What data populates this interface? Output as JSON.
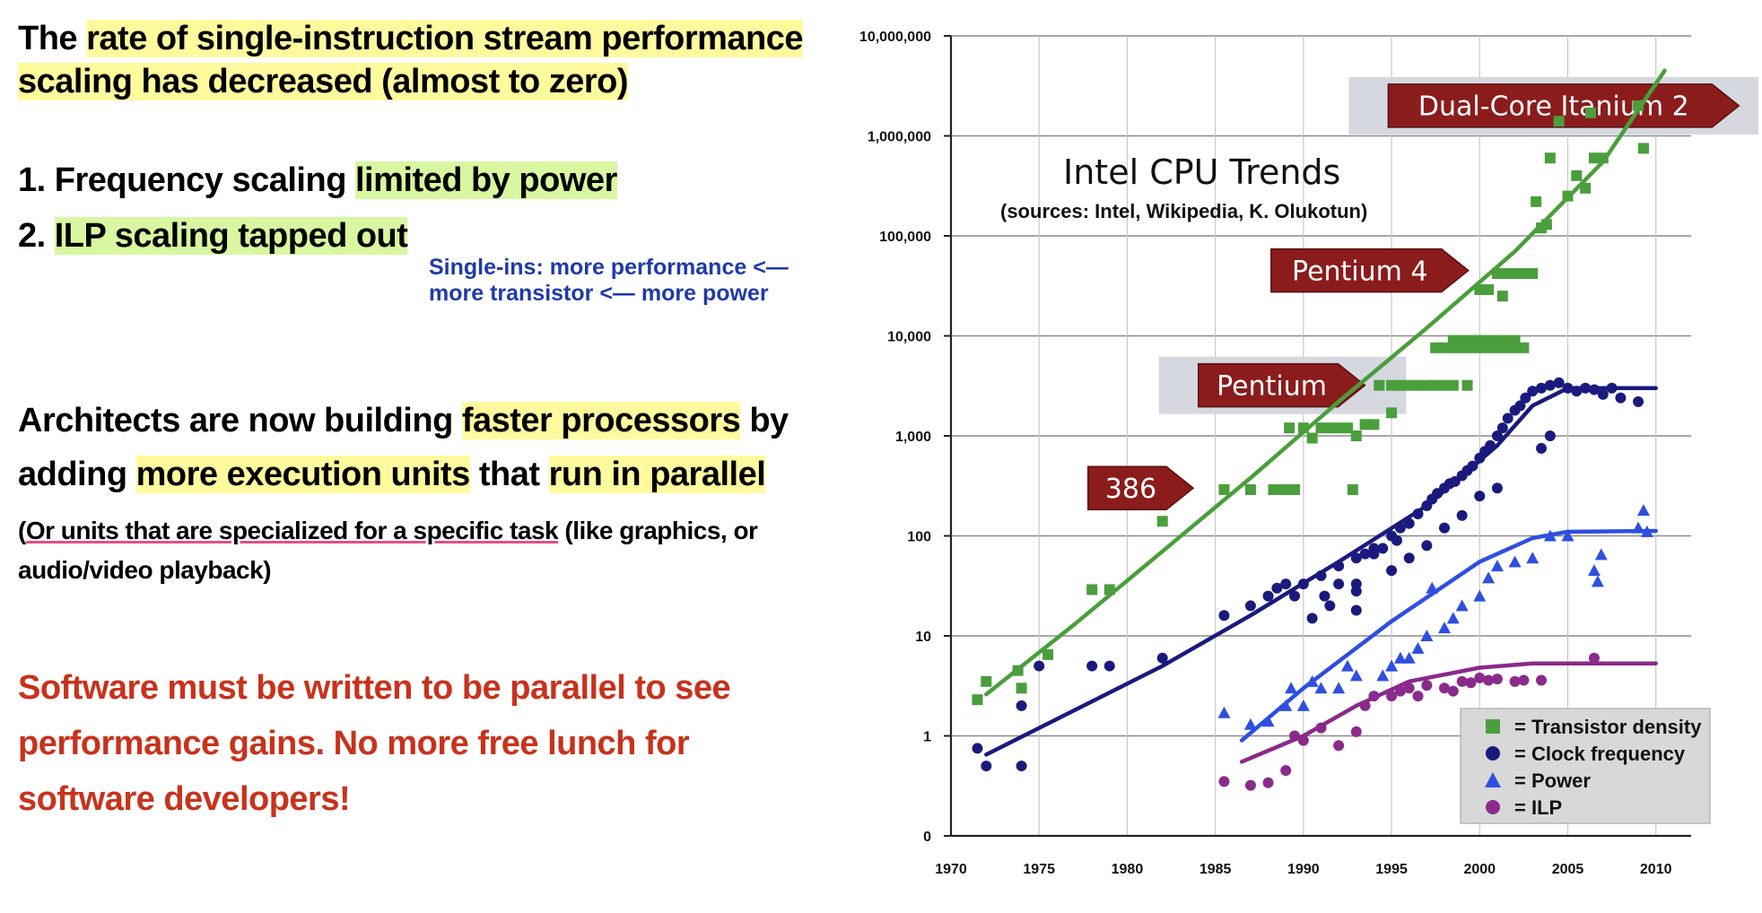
{
  "left": {
    "heading_pre": "The ",
    "heading_hl1": "rate of single-instruction stream performance",
    "heading_hl2": "scaling has decreased (almost to zero)",
    "item1_pre": "1. Frequency scaling ",
    "item1_hl": "limited by power",
    "item2_pre": "2. ",
    "item2_hl": "ILP scaling tapped out",
    "note_line1": "Single-ins: more performance <—",
    "note_line2": "more transistor <— more power",
    "arch_a": "Architects are now building ",
    "arch_b": "faster processors",
    "arch_c": " by",
    "arch_d": "adding ",
    "arch_e": "more execution units",
    "arch_f": " that ",
    "arch_g": "run in parallel",
    "paren_a": "(",
    "paren_b": "Or units that are specialized for a specific task",
    "paren_c": " (like graphics, or",
    "paren_d": "audio/video playback)",
    "software_1": "Software must be written to be parallel to see",
    "software_2": "performance gains. No more free lunch for",
    "software_3": "software developers!"
  },
  "colors": {
    "transistor": "#4a9e3c",
    "clock": "#1a1a7e",
    "power": "#2e4fe0",
    "ilp": "#8a2a8a",
    "label_box": "#8b1c1c",
    "label_shade": "#d6d8e0",
    "highlight_yellow": "#fffa9e",
    "highlight_green": "#d8f7a0",
    "software_text": "#c8321c",
    "note_text": "#1f3aa8"
  },
  "chart_data": {
    "type": "scatter",
    "title": "Intel CPU Trends",
    "subtitle": "(sources: Intel, Wikipedia, K. Olukotun)",
    "xlabel": "",
    "ylabel": "",
    "xlim": [
      1970,
      2012
    ],
    "y_scale": "log",
    "y_tick_values": [
      0.1,
      1,
      10,
      100,
      1000,
      10000,
      100000,
      1000000,
      10000000
    ],
    "y_tick_labels": [
      "0",
      "1",
      "10",
      "100",
      "1,000",
      "10,000",
      "100,000",
      "1,000,000",
      "10,000,000"
    ],
    "x_ticks": [
      1970,
      1975,
      1980,
      1985,
      1990,
      1995,
      2000,
      2005,
      2010
    ],
    "grid": true,
    "legend_position": "bottom-right",
    "legend": [
      {
        "label": "= Transistor density",
        "marker": "square",
        "color": "#4a9e3c"
      },
      {
        "label": "= Clock frequency",
        "marker": "circle",
        "color": "#1a1a7e"
      },
      {
        "label": "= Power",
        "marker": "triangle",
        "color": "#2e4fe0"
      },
      {
        "label": "= ILP",
        "marker": "circle",
        "color": "#8a2a8a"
      }
    ],
    "annotations": [
      {
        "text": "386",
        "x": 1980,
        "y": 300,
        "shaded": false
      },
      {
        "text": "Pentium",
        "x": 1988,
        "y": 3200,
        "shaded": true
      },
      {
        "text": "Pentium 4",
        "x": 1993,
        "y": 45000,
        "shaded": false
      },
      {
        "text": "Dual-Core Itanium 2",
        "x": 2004,
        "y": 2000000,
        "shaded": true
      }
    ],
    "series": [
      {
        "name": "Transistor density",
        "marker": "square",
        "color": "#4a9e3c",
        "points": [
          [
            1971.5,
            2.3
          ],
          [
            1972,
            3.5
          ],
          [
            1973.8,
            4.5
          ],
          [
            1974,
            3
          ],
          [
            1975.5,
            6.5
          ],
          [
            1978,
            29
          ],
          [
            1979,
            29
          ],
          [
            1982,
            140
          ],
          [
            1985.5,
            290
          ],
          [
            1987,
            290
          ],
          [
            1988.3,
            290
          ],
          [
            1988.9,
            290
          ],
          [
            1989.5,
            290
          ],
          [
            1992.8,
            290
          ],
          [
            1989.2,
            1200
          ],
          [
            1990,
            1200
          ],
          [
            1990.5,
            950
          ],
          [
            1991,
            1200
          ],
          [
            1991.5,
            1200
          ],
          [
            1992,
            1200
          ],
          [
            1992.5,
            1200
          ],
          [
            1993,
            1000
          ],
          [
            1993.5,
            1300
          ],
          [
            1994,
            1300
          ],
          [
            1995,
            1700
          ],
          [
            1994.3,
            3200
          ],
          [
            1995,
            3200
          ],
          [
            1995.5,
            3200
          ],
          [
            1996,
            3200
          ],
          [
            1996.5,
            3200
          ],
          [
            1997,
            3200
          ],
          [
            1997.5,
            3200
          ],
          [
            1998,
            3200
          ],
          [
            1998.5,
            3200
          ],
          [
            1999.3,
            3200
          ],
          [
            1997.5,
            7600
          ],
          [
            1998,
            7600
          ],
          [
            1998.5,
            7600
          ],
          [
            1999,
            7600
          ],
          [
            1999.5,
            7600
          ],
          [
            2000,
            7600
          ],
          [
            2000.5,
            7600
          ],
          [
            2001,
            7600
          ],
          [
            2001.5,
            7600
          ],
          [
            2002,
            7600
          ],
          [
            2002.5,
            7600
          ],
          [
            1998.5,
            9000
          ],
          [
            1999,
            9000
          ],
          [
            1999.5,
            9000
          ],
          [
            2000,
            9000
          ],
          [
            2000.5,
            9000
          ],
          [
            2001,
            9000
          ],
          [
            2001.5,
            9000
          ],
          [
            2002,
            9000
          ],
          [
            2000,
            29000
          ],
          [
            2000.5,
            29000
          ],
          [
            2001,
            42000
          ],
          [
            2001.5,
            42000
          ],
          [
            2002,
            42000
          ],
          [
            2002.5,
            42000
          ],
          [
            2003,
            42000
          ],
          [
            2001.3,
            25000
          ],
          [
            2003.5,
            120000
          ],
          [
            2003.8,
            130000
          ],
          [
            2003.2,
            220000
          ],
          [
            2004,
            600000
          ],
          [
            2004.5,
            1400000
          ],
          [
            2005,
            250000
          ],
          [
            2005.5,
            400000
          ],
          [
            2006,
            300000
          ],
          [
            2006.5,
            600000
          ],
          [
            2007,
            600000
          ],
          [
            2006.3,
            1700000
          ],
          [
            2009,
            2000000
          ],
          [
            2009.3,
            750000
          ]
        ],
        "trend": [
          [
            1972,
            2.6
          ],
          [
            1977,
            13
          ],
          [
            1982,
            70
          ],
          [
            1987,
            380
          ],
          [
            1992,
            2200
          ],
          [
            1997,
            12000
          ],
          [
            2002,
            70000
          ],
          [
            2007,
            550000
          ],
          [
            2010.5,
            4500000
          ]
        ]
      },
      {
        "name": "Clock frequency",
        "marker": "circle",
        "color": "#1a1a7e",
        "points": [
          [
            1971.5,
            0.75
          ],
          [
            1972,
            0.5
          ],
          [
            1974,
            0.5
          ],
          [
            1974,
            2
          ],
          [
            1975,
            5
          ],
          [
            1978,
            5
          ],
          [
            1979,
            5
          ],
          [
            1982,
            6
          ],
          [
            1985.5,
            16
          ],
          [
            1987,
            20
          ],
          [
            1988,
            25
          ],
          [
            1988.5,
            30
          ],
          [
            1989,
            33
          ],
          [
            1989.5,
            25
          ],
          [
            1990,
            33
          ],
          [
            1991,
            40
          ],
          [
            1991.5,
            20
          ],
          [
            1992,
            33
          ],
          [
            1992,
            50
          ],
          [
            1993,
            33
          ],
          [
            1993,
            60
          ],
          [
            1993.5,
            66
          ],
          [
            1994,
            66
          ],
          [
            1994,
            75
          ],
          [
            1994.5,
            75
          ],
          [
            1995,
            100
          ],
          [
            1995.3,
            90
          ],
          [
            1995.5,
            120
          ],
          [
            1996,
            133
          ],
          [
            1996.5,
            166
          ],
          [
            1997,
            200
          ],
          [
            1997.3,
            233
          ],
          [
            1997.6,
            266
          ],
          [
            1998,
            300
          ],
          [
            1998.3,
            333
          ],
          [
            1998.6,
            350
          ],
          [
            1999,
            400
          ],
          [
            1999.3,
            450
          ],
          [
            1999.6,
            500
          ],
          [
            2000,
            600
          ],
          [
            2000.3,
            700
          ],
          [
            2000.6,
            800
          ],
          [
            2001,
            1000
          ],
          [
            2001.3,
            1200
          ],
          [
            2001.6,
            1500
          ],
          [
            2002,
            1800
          ],
          [
            2002.3,
            2000
          ],
          [
            2002.6,
            2400
          ],
          [
            2003,
            2800
          ],
          [
            2003.5,
            3000
          ],
          [
            2004,
            3200
          ],
          [
            2004.5,
            3400
          ],
          [
            2005,
            3000
          ],
          [
            2005.5,
            2800
          ],
          [
            2006,
            3000
          ],
          [
            2006.5,
            2900
          ],
          [
            2007,
            2600
          ],
          [
            2007.5,
            3000
          ],
          [
            2008,
            2400
          ],
          [
            2009,
            2200
          ],
          [
            1995,
            45
          ],
          [
            1996,
            60
          ],
          [
            1997,
            80
          ],
          [
            1998,
            120
          ],
          [
            1999,
            160
          ],
          [
            2000,
            250
          ],
          [
            2001,
            300
          ],
          [
            2003.5,
            750
          ],
          [
            2004,
            1000
          ],
          [
            1990.5,
            15
          ],
          [
            1991.2,
            25
          ],
          [
            1993,
            18
          ],
          [
            1993,
            28
          ]
        ],
        "trend": [
          [
            1972,
            0.65
          ],
          [
            1977,
            1.8
          ],
          [
            1982,
            5
          ],
          [
            1987,
            16
          ],
          [
            1992,
            55
          ],
          [
            1997,
            200
          ],
          [
            2001,
            800
          ],
          [
            2003,
            2000
          ],
          [
            2005,
            3000
          ],
          [
            2010,
            3000
          ]
        ]
      },
      {
        "name": "Power",
        "marker": "triangle",
        "color": "#2e4fe0",
        "points": [
          [
            1985.5,
            1.7
          ],
          [
            1987,
            1.3
          ],
          [
            1988,
            1.4
          ],
          [
            1989,
            2
          ],
          [
            1989.3,
            3
          ],
          [
            1990,
            2
          ],
          [
            1990.5,
            3.5
          ],
          [
            1991,
            3
          ],
          [
            1992,
            3
          ],
          [
            1992.5,
            5
          ],
          [
            1993,
            4
          ],
          [
            1994.5,
            4
          ],
          [
            1995,
            5
          ],
          [
            1995.5,
            6
          ],
          [
            1996,
            6
          ],
          [
            1996.5,
            7.5
          ],
          [
            1997,
            10
          ],
          [
            1997.3,
            30
          ],
          [
            1998,
            12
          ],
          [
            1998.5,
            15
          ],
          [
            1999,
            20
          ],
          [
            2000,
            25
          ],
          [
            2000.5,
            38
          ],
          [
            2001,
            50
          ],
          [
            2002,
            55
          ],
          [
            2003,
            60
          ],
          [
            2004,
            100
          ],
          [
            2005,
            100
          ],
          [
            2006.5,
            45
          ],
          [
            2006.7,
            35
          ],
          [
            2006.9,
            65
          ],
          [
            2009,
            120
          ],
          [
            2009.3,
            180
          ],
          [
            2009.5,
            110
          ]
        ],
        "trend": [
          [
            1986.5,
            0.9
          ],
          [
            1990,
            3
          ],
          [
            1995,
            14
          ],
          [
            2000,
            55
          ],
          [
            2003,
            95
          ],
          [
            2005,
            110
          ],
          [
            2010,
            112
          ]
        ]
      },
      {
        "name": "ILP",
        "marker": "circle",
        "color": "#8a2a8a",
        "points": [
          [
            1985.5,
            0.35
          ],
          [
            1987,
            0.32
          ],
          [
            1988,
            0.34
          ],
          [
            1989,
            0.45
          ],
          [
            1989.5,
            1
          ],
          [
            1990,
            0.9
          ],
          [
            1991,
            1.2
          ],
          [
            1992,
            0.8
          ],
          [
            1993,
            1.1
          ],
          [
            1993.5,
            2
          ],
          [
            1994,
            2.5
          ],
          [
            1995,
            2.5
          ],
          [
            1995.5,
            2.8
          ],
          [
            1996,
            3
          ],
          [
            1996.5,
            2.5
          ],
          [
            1997,
            3.2
          ],
          [
            1998,
            3
          ],
          [
            1998.5,
            2.8
          ],
          [
            1999,
            3.5
          ],
          [
            1999.5,
            3.4
          ],
          [
            2000,
            3.8
          ],
          [
            2000.5,
            3.6
          ],
          [
            2001,
            3.7
          ],
          [
            2002,
            3.5
          ],
          [
            2002.5,
            3.6
          ],
          [
            2003.5,
            3.6
          ],
          [
            2006.5,
            6
          ]
        ],
        "trend": [
          [
            1986.5,
            0.55
          ],
          [
            1990,
            1
          ],
          [
            1993,
            2
          ],
          [
            1996,
            3.5
          ],
          [
            2000,
            4.8
          ],
          [
            2003,
            5.3
          ],
          [
            2010,
            5.3
          ]
        ]
      }
    ]
  }
}
